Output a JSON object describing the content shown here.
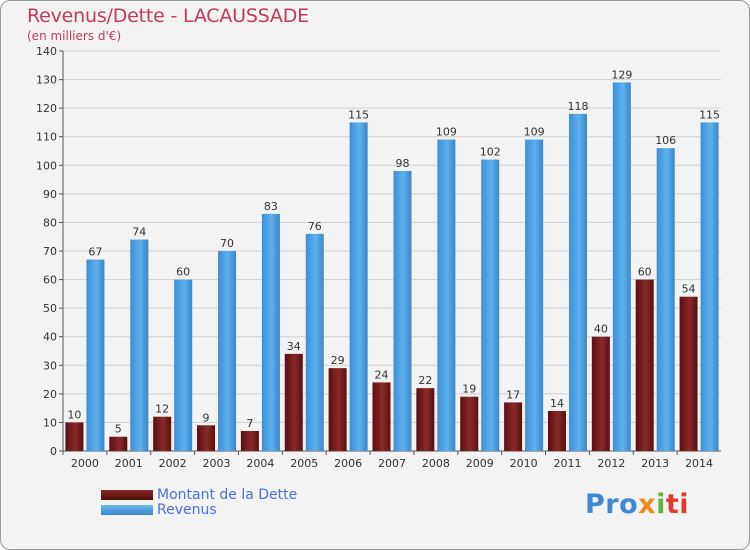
{
  "chart_data": {
    "type": "bar",
    "title": "Revenus/Dette - LACAUSSADE",
    "subtitle": "(en milliers d'€)",
    "categories": [
      "2000",
      "2001",
      "2002",
      "2003",
      "2004",
      "2005",
      "2006",
      "2007",
      "2008",
      "2009",
      "2010",
      "2011",
      "2012",
      "2013",
      "2014"
    ],
    "series": [
      {
        "name": "Montant de la Dette",
        "color": "#7a1a1a",
        "values": [
          10,
          5,
          12,
          9,
          7,
          34,
          29,
          24,
          22,
          19,
          17,
          14,
          40,
          60,
          54
        ]
      },
      {
        "name": "Revenus",
        "color": "#4aa2e6",
        "values": [
          67,
          74,
          60,
          70,
          83,
          76,
          115,
          98,
          109,
          102,
          109,
          118,
          129,
          106,
          115
        ]
      }
    ],
    "ylim": [
      0,
      140
    ],
    "yticks": [
      0,
      10,
      20,
      30,
      40,
      50,
      60,
      70,
      80,
      90,
      100,
      110,
      120,
      130,
      140
    ],
    "grid": true,
    "legend": "bottom-left"
  },
  "logo": {
    "parts": [
      "Pro",
      "x",
      "i",
      "ti"
    ]
  }
}
